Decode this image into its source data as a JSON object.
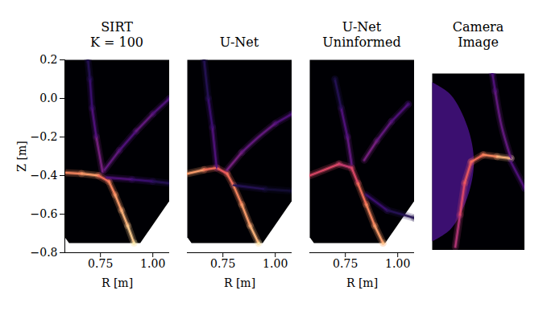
{
  "chart_data": [
    {
      "type": "image",
      "title": "SIRT K = 100",
      "xlabel": "R [m]",
      "ylabel": "Z [m]",
      "xlim": [
        0.58,
        1.08
      ],
      "ylim": [
        -0.8,
        0.2
      ],
      "xticks": [
        0.75,
        {
          "value": 1,
          "label": "1.00"
        }
      ],
      "yticks": [
        {
          "value": -0.8,
          "label": "−0.8"
        },
        {
          "value": -0.6,
          "label": "−0.6"
        },
        {
          "value": -0.4,
          "label": "−0.4"
        },
        {
          "value": -0.2,
          "label": "−0.2"
        },
        {
          "value": 0,
          "label": "0.0"
        },
        0.2
      ],
      "intensity_range": [
        0,
        1
      ],
      "domain_outline": {
        "x": [
          0.58,
          1.08,
          1.08,
          0.94,
          0.6,
          0.58
        ],
        "y": [
          0.2,
          0.2,
          -0.53,
          -0.75,
          -0.75,
          -0.72
        ]
      },
      "features": [
        {
          "x": [
            0.58,
            0.66,
            0.74,
            0.79,
            0.82,
            0.85,
            0.88,
            0.91
          ],
          "y": [
            -0.385,
            -0.39,
            -0.4,
            -0.43,
            -0.5,
            -0.58,
            -0.66,
            -0.75
          ],
          "values": [
            0.75,
            0.8,
            0.7,
            0.75,
            0.8,
            0.85,
            0.9,
            1.0
          ]
        },
        {
          "x": [
            0.76,
            0.73,
            0.71,
            0.7,
            0.69
          ],
          "y": [
            -0.38,
            -0.2,
            -0.05,
            0.1,
            0.2
          ],
          "values": [
            0.35,
            0.25,
            0.2,
            0.15,
            0.12
          ]
        },
        {
          "x": [
            0.77,
            0.84,
            0.92,
            1.0,
            1.08
          ],
          "y": [
            -0.37,
            -0.27,
            -0.17,
            -0.08,
            0.0
          ],
          "values": [
            0.3,
            0.25,
            0.3,
            0.25,
            0.2
          ]
        },
        {
          "x": [
            0.78,
            0.9,
            1.0,
            1.08
          ],
          "y": [
            -0.41,
            -0.42,
            -0.43,
            -0.44
          ],
          "values": [
            0.25,
            0.2,
            0.15,
            0.1
          ]
        }
      ]
    },
    {
      "type": "image",
      "title": "U-Net",
      "xlabel": "R [m]",
      "tick_labels": "x",
      "xlim": [
        0.58,
        1.08
      ],
      "ylim": [
        -0.8,
        0.2
      ],
      "xticks": [
        0.75,
        {
          "value": 1,
          "label": "1.00"
        }
      ],
      "intensity_range": [
        0,
        1
      ],
      "domain_outline": {
        "x": [
          0.58,
          1.08,
          1.08,
          0.94,
          0.6,
          0.58
        ],
        "y": [
          0.2,
          0.2,
          -0.53,
          -0.75,
          -0.75,
          -0.72
        ]
      },
      "features": [
        {
          "x": [
            0.58,
            0.66,
            0.72,
            0.77,
            0.8,
            0.84,
            0.88,
            0.92
          ],
          "y": [
            -0.39,
            -0.37,
            -0.36,
            -0.39,
            -0.45,
            -0.55,
            -0.66,
            -0.75
          ],
          "values": [
            0.8,
            0.7,
            0.65,
            0.7,
            0.75,
            0.8,
            0.85,
            1.0
          ]
        },
        {
          "x": [
            0.72,
            0.7,
            0.68,
            0.66
          ],
          "y": [
            -0.36,
            -0.15,
            0.0,
            0.2
          ],
          "values": [
            0.25,
            0.2,
            0.15,
            0.1
          ]
        },
        {
          "x": [
            0.77,
            0.84,
            0.92,
            1.0,
            1.08
          ],
          "y": [
            -0.37,
            -0.28,
            -0.2,
            -0.13,
            -0.08
          ],
          "values": [
            0.35,
            0.3,
            0.3,
            0.25,
            0.2
          ]
        },
        {
          "x": [
            0.8,
            0.95,
            1.08
          ],
          "y": [
            -0.45,
            -0.47,
            -0.48
          ],
          "values": [
            0.15,
            0.1,
            0.08
          ]
        }
      ]
    },
    {
      "type": "image",
      "title": "U-Net Uninformed",
      "xlabel": "R [m]",
      "tick_labels": "x",
      "xlim": [
        0.58,
        1.08
      ],
      "ylim": [
        -0.8,
        0.2
      ],
      "xticks": [
        0.75,
        {
          "value": 1,
          "label": "1.00"
        }
      ],
      "intensity_range": [
        0,
        1
      ],
      "domain_outline": {
        "x": [
          0.58,
          1.08,
          1.08,
          0.94,
          0.6,
          0.58
        ],
        "y": [
          0.2,
          0.2,
          -0.53,
          -0.75,
          -0.75,
          -0.72
        ]
      },
      "features": [
        {
          "x": [
            0.58,
            0.65,
            0.72,
            0.78,
            0.81,
            0.85,
            0.89,
            0.93
          ],
          "y": [
            -0.4,
            -0.37,
            -0.34,
            -0.36,
            -0.44,
            -0.55,
            -0.66,
            -0.75
          ],
          "values": [
            0.6,
            0.6,
            0.55,
            0.6,
            0.7,
            0.75,
            0.8,
            0.9
          ]
        },
        {
          "x": [
            0.78,
            0.76,
            0.73,
            0.7
          ],
          "y": [
            -0.34,
            -0.2,
            -0.05,
            0.1
          ],
          "values": [
            0.3,
            0.25,
            0.15,
            0.1
          ]
        },
        {
          "x": [
            0.84,
            0.9,
            0.97,
            1.05
          ],
          "y": [
            -0.32,
            -0.22,
            -0.12,
            -0.03
          ],
          "values": [
            0.35,
            0.3,
            0.25,
            0.2
          ]
        },
        {
          "x": [
            0.85,
            0.95,
            1.08
          ],
          "y": [
            -0.5,
            -0.58,
            -0.62
          ],
          "values": [
            0.2,
            0.15,
            0.1
          ]
        }
      ]
    },
    {
      "type": "image",
      "title": "Camera Image",
      "tick_labels": false,
      "xlim": [
        0,
        1
      ],
      "ylim": [
        0,
        1
      ],
      "intensity_range": [
        0,
        1
      ],
      "domain_outline": {
        "x": [
          0,
          1,
          1,
          0
        ],
        "y": [
          0,
          0,
          1,
          1
        ]
      },
      "regions": [
        {
          "x": [
            0,
            0.2,
            0.38,
            0.45,
            0.38,
            0.2,
            0
          ],
          "y": [
            0.95,
            0.88,
            0.7,
            0.5,
            0.3,
            0.12,
            0.05
          ],
          "value": 0.2
        }
      ],
      "features": [
        {
          "x": [
            0.25,
            0.3,
            0.35,
            0.42,
            0.55,
            0.7,
            0.85
          ],
          "y": [
            0.02,
            0.2,
            0.38,
            0.5,
            0.54,
            0.53,
            0.52
          ],
          "values": [
            0.5,
            0.6,
            0.65,
            0.7,
            0.75,
            0.85,
            1.0
          ]
        },
        {
          "x": [
            0.85,
            0.75,
            0.68,
            0.65
          ],
          "y": [
            0.52,
            0.7,
            0.9,
            1.0
          ],
          "values": [
            0.3,
            0.3,
            0.25,
            0.2
          ]
        },
        {
          "x": [
            0.85,
            1.0
          ],
          "y": [
            0.5,
            0.35
          ],
          "values": [
            0.25,
            0.2
          ]
        }
      ]
    }
  ]
}
